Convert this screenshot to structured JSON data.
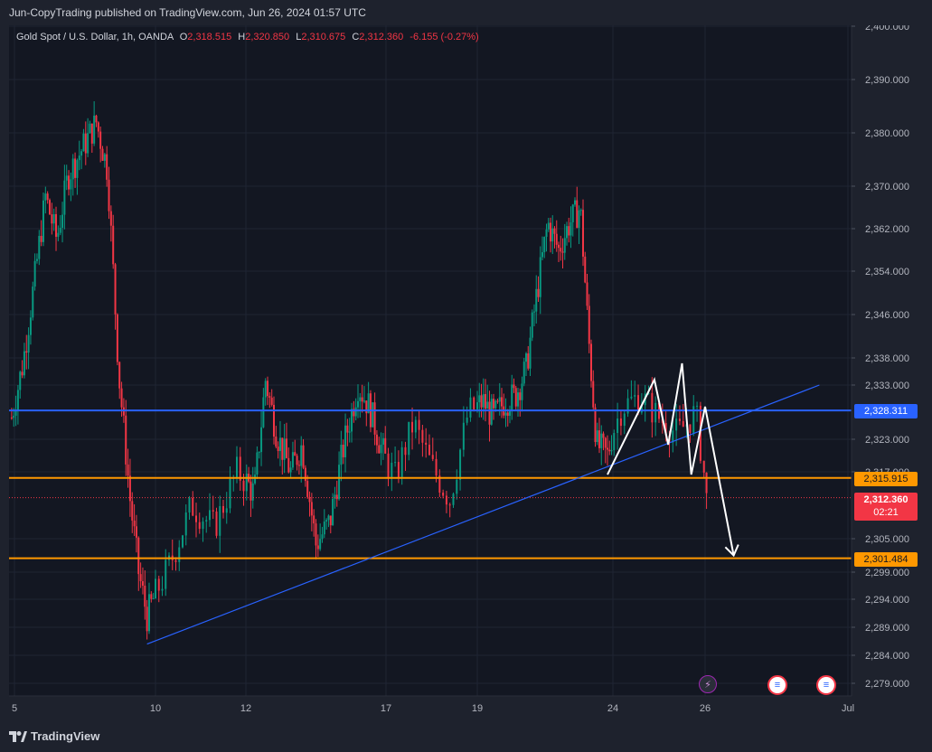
{
  "header": {
    "published": "Jun-CopyTrading published on TradingView.com, Jun 26, 2024 01:57 UTC"
  },
  "legend": {
    "symbol": "Gold Spot / U.S. Dollar, 1h, OANDA",
    "open_label": "O",
    "open": "2,318.515",
    "high_label": "H",
    "high": "2,320.850",
    "low_label": "L",
    "low": "2,310.675",
    "close_label": "C",
    "close": "2,312.360",
    "change": "-6.155 (-0.27%)"
  },
  "price_tags": {
    "blue_level": "2,328.311",
    "upper_orange": "2,315.915",
    "current": "2,312.360",
    "countdown": "02:21",
    "lower_orange": "2,301.484"
  },
  "footer": {
    "brand": "TradingView"
  },
  "colors": {
    "background": "#131722",
    "frame": "#1e222d",
    "up": "#089981",
    "down": "#f23645",
    "blue_line": "#2962ff",
    "orange_line": "#ff9800",
    "drawing": "#ffffff",
    "text": "#b2b5be"
  },
  "chart_data": {
    "type": "candlestick",
    "symbol": "XAUUSD",
    "timeframe": "1h",
    "y_ticks": [
      "2,400.000",
      "2,390.000",
      "2,380.000",
      "2,370.000",
      "2,362.000",
      "2,354.000",
      "2,346.000",
      "2,338.000",
      "2,333.000",
      "2,323.000",
      "2,317.000",
      "2,305.000",
      "2,299.000",
      "2,294.000",
      "2,289.000",
      "2,284.000",
      "2,279.000"
    ],
    "x_ticks": [
      {
        "label": "5",
        "day": 5
      },
      {
        "label": "10",
        "day": 10
      },
      {
        "label": "12",
        "day": 12
      },
      {
        "label": "17",
        "day": 17
      },
      {
        "label": "19",
        "day": 19
      },
      {
        "label": "24",
        "day": 24
      },
      {
        "label": "26",
        "day": 26
      },
      {
        "label": "Jul",
        "day": 31
      }
    ],
    "price_path": [
      {
        "day": 4.9,
        "price": 2327
      },
      {
        "day": 5.3,
        "price": 2337
      },
      {
        "day": 5.7,
        "price": 2352
      },
      {
        "day": 6.1,
        "price": 2368
      },
      {
        "day": 6.5,
        "price": 2360
      },
      {
        "day": 6.9,
        "price": 2372
      },
      {
        "day": 7.4,
        "price": 2377
      },
      {
        "day": 7.9,
        "price": 2382
      },
      {
        "day": 8.3,
        "price": 2373
      },
      {
        "day": 8.7,
        "price": 2335
      },
      {
        "day": 9.1,
        "price": 2312
      },
      {
        "day": 9.4,
        "price": 2299
      },
      {
        "day": 9.7,
        "price": 2291
      },
      {
        "day": 10.0,
        "price": 2295
      },
      {
        "day": 10.3,
        "price": 2300
      },
      {
        "day": 10.8,
        "price": 2311
      },
      {
        "day": 11.3,
        "price": 2307
      },
      {
        "day": 11.8,
        "price": 2317
      },
      {
        "day": 12.3,
        "price": 2313
      },
      {
        "day": 12.7,
        "price": 2334
      },
      {
        "day": 13.1,
        "price": 2324
      },
      {
        "day": 13.6,
        "price": 2317
      },
      {
        "day": 14.0,
        "price": 2322
      },
      {
        "day": 14.5,
        "price": 2304
      },
      {
        "day": 15.0,
        "price": 2308
      },
      {
        "day": 15.5,
        "price": 2322
      },
      {
        "day": 16.0,
        "price": 2333
      },
      {
        "day": 16.4,
        "price": 2329
      },
      {
        "day": 16.8,
        "price": 2322
      },
      {
        "day": 17.2,
        "price": 2316
      },
      {
        "day": 17.6,
        "price": 2326
      },
      {
        "day": 18.0,
        "price": 2318
      },
      {
        "day": 18.4,
        "price": 2312
      },
      {
        "day": 18.8,
        "price": 2328
      },
      {
        "day": 19.2,
        "price": 2330
      },
      {
        "day": 19.6,
        "price": 2327
      },
      {
        "day": 20.0,
        "price": 2330
      },
      {
        "day": 20.4,
        "price": 2331
      },
      {
        "day": 20.8,
        "price": 2336
      },
      {
        "day": 21.2,
        "price": 2350
      },
      {
        "day": 21.6,
        "price": 2363
      },
      {
        "day": 22.0,
        "price": 2358
      },
      {
        "day": 22.4,
        "price": 2363
      },
      {
        "day": 22.8,
        "price": 2366
      },
      {
        "day": 23.1,
        "price": 2342
      },
      {
        "day": 23.4,
        "price": 2322
      },
      {
        "day": 23.8,
        "price": 2320
      },
      {
        "day": 24.2,
        "price": 2329
      },
      {
        "day": 24.6,
        "price": 2331
      },
      {
        "day": 25.0,
        "price": 2327
      },
      {
        "day": 25.4,
        "price": 2324
      },
      {
        "day": 25.8,
        "price": 2328
      },
      {
        "day": 26.05,
        "price": 2312
      }
    ],
    "horizontal_levels": [
      {
        "price": 2328.311,
        "color": "blue_line"
      },
      {
        "price": 2315.915,
        "color": "orange_line"
      },
      {
        "price": 2301.484,
        "color": "orange_line"
      },
      {
        "price": 2312.36,
        "color": "down",
        "style": "dotted"
      }
    ],
    "trendline": {
      "from": {
        "day": 9.7,
        "price": 2286
      },
      "to": {
        "day": 30.0,
        "price": 2333
      }
    },
    "drawing_path": [
      {
        "day": 23.8,
        "price": 2316.5
      },
      {
        "day": 24.9,
        "price": 2334
      },
      {
        "day": 25.2,
        "price": 2322
      },
      {
        "day": 25.5,
        "price": 2337
      },
      {
        "day": 25.7,
        "price": 2316.5
      },
      {
        "day": 26.0,
        "price": 2329
      },
      {
        "day": 27.0,
        "price": 2302
      }
    ]
  }
}
